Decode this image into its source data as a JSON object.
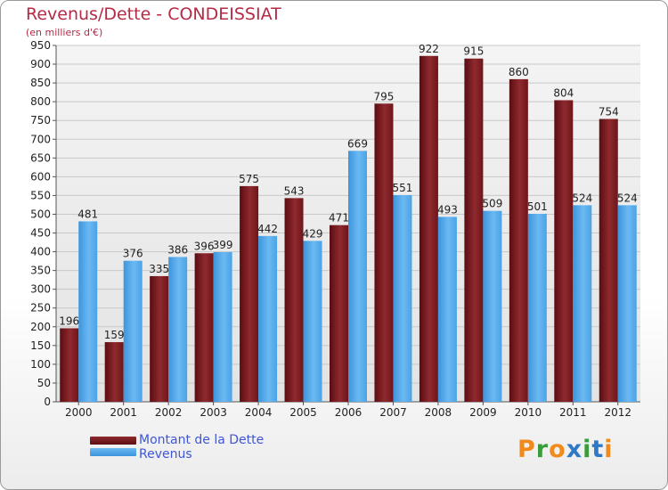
{
  "header": {
    "title": "Revenus/Dette - CONDEISSIAT",
    "subtitle": "(en milliers d'€)"
  },
  "legend": {
    "items": [
      {
        "label": "Montant de la Dette",
        "color": "#7a1b20"
      },
      {
        "label": "Revenus",
        "color": "#4aa3e6"
      }
    ]
  },
  "logo": {
    "text": "Proxiti",
    "colors": [
      "#f08a1c",
      "#3a9b3a",
      "#f08a1c",
      "#2d79c7",
      "#3a9b3a",
      "#2d79c7",
      "#f08a1c"
    ]
  },
  "chart_data": {
    "type": "bar",
    "title": "Revenus/Dette - CONDEISSIAT",
    "subtitle": "(en milliers d'€)",
    "categories": [
      "2000",
      "2001",
      "2002",
      "2003",
      "2004",
      "2005",
      "2006",
      "2007",
      "2008",
      "2009",
      "2010",
      "2011",
      "2012"
    ],
    "series": [
      {
        "name": "Montant de la Dette",
        "color": "#7a1b20",
        "values": [
          196,
          159,
          335,
          396,
          575,
          543,
          471,
          795,
          922,
          915,
          860,
          804,
          754
        ]
      },
      {
        "name": "Revenus",
        "color": "#4aa3e6",
        "values": [
          481,
          376,
          386,
          399,
          442,
          429,
          669,
          551,
          493,
          509,
          501,
          524,
          524
        ]
      }
    ],
    "ylim": [
      0,
      950
    ],
    "ytick_step": 50,
    "grid": true,
    "legend_position": "bottom-left"
  }
}
